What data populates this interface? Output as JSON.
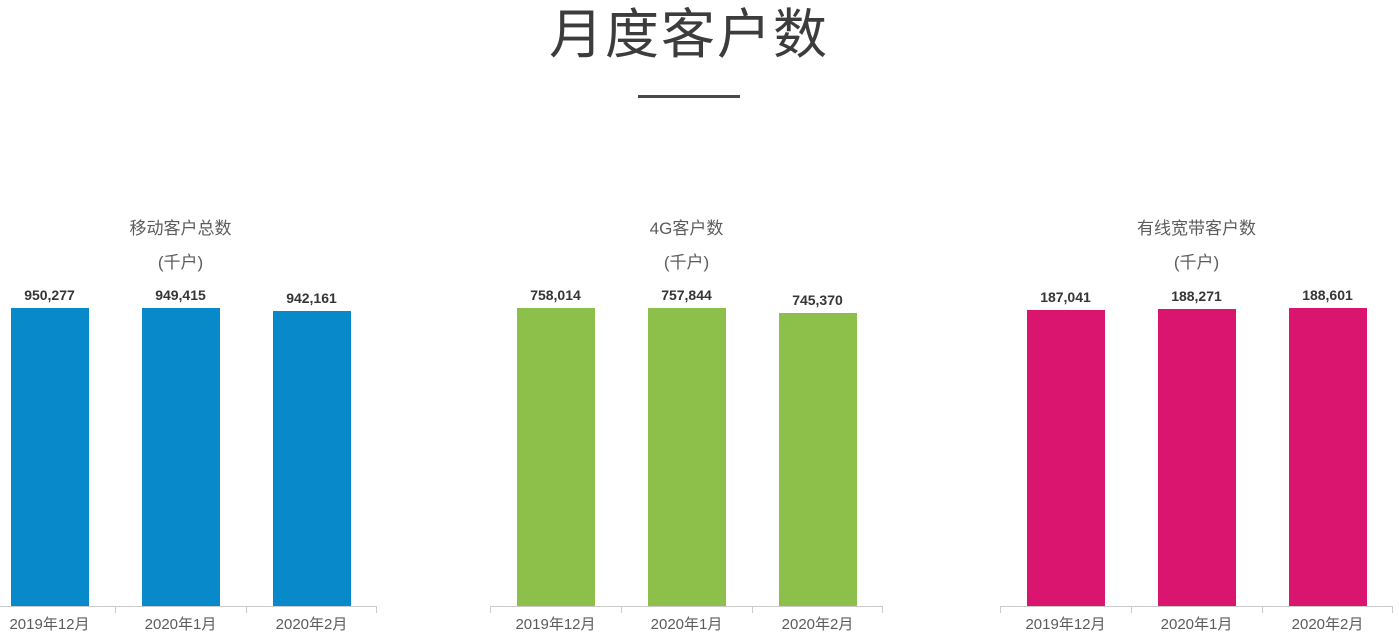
{
  "page": {
    "title": "月度客户数"
  },
  "style": {
    "background": "#ffffff",
    "title_color": "#3c3c3c",
    "divider_color": "#4a4a4a",
    "chart_title_color": "#5c5c5c",
    "value_label_color": "#353535",
    "axis_color": "#cbcbcb",
    "axis_label_color": "#5c5c5c"
  },
  "chart_data": [
    {
      "type": "bar",
      "title": "移动客户总数",
      "subtitle": "(千户)",
      "unit": "千户",
      "categories": [
        "2019年12月",
        "2020年1月",
        "2020年2月"
      ],
      "values": [
        950277,
        949415,
        942161
      ],
      "labels": [
        "950,277",
        "949,415",
        "942,161"
      ],
      "bar_color": "#0889c9",
      "grid": false,
      "legend": "none",
      "value_labels": "above-bars",
      "ylim": [
        0,
        950277
      ]
    },
    {
      "type": "bar",
      "title": "4G客户数",
      "subtitle": "(千户)",
      "unit": "千户",
      "categories": [
        "2019年12月",
        "2020年1月",
        "2020年2月"
      ],
      "values": [
        758014,
        757844,
        745370
      ],
      "labels": [
        "758,014",
        "757,844",
        "745,370"
      ],
      "bar_color": "#8cc04a",
      "grid": false,
      "legend": "none",
      "value_labels": "above-bars",
      "ylim": [
        0,
        758014
      ]
    },
    {
      "type": "bar",
      "title": "有线宽带客户数",
      "subtitle": "(千户)",
      "unit": "千户",
      "categories": [
        "2019年12月",
        "2020年1月",
        "2020年2月"
      ],
      "values": [
        187041,
        188271,
        188601
      ],
      "labels": [
        "187,041",
        "188,271",
        "188,601"
      ],
      "bar_color": "#d91570",
      "grid": false,
      "legend": "none",
      "value_labels": "above-bars",
      "ylim": [
        0,
        188601
      ]
    }
  ]
}
